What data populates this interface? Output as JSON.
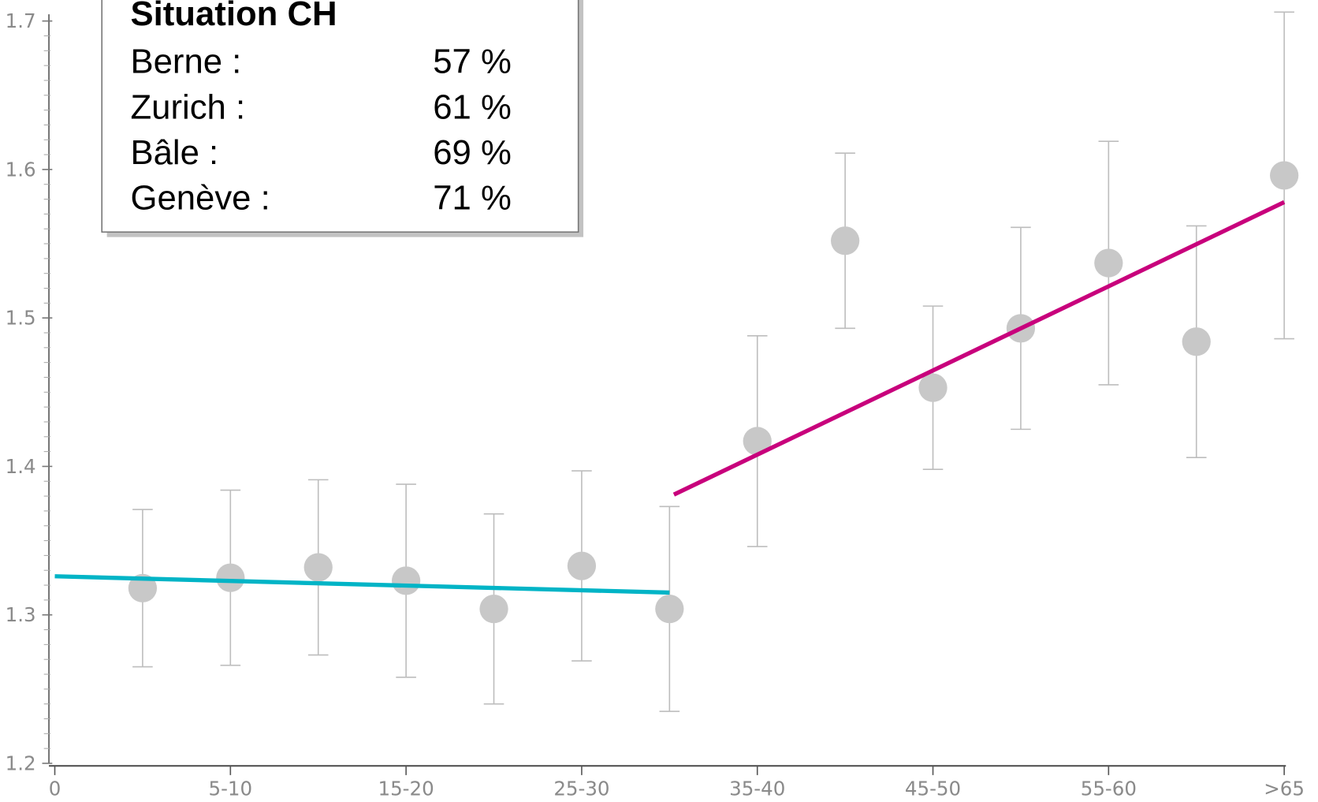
{
  "chart_data": {
    "type": "scatter",
    "x": [
      1,
      2,
      3,
      4,
      5,
      6,
      7,
      8,
      9,
      10,
      11,
      12,
      13,
      14
    ],
    "series": [
      {
        "color": "#c8c8c8",
        "values": [
          1.318,
          1.325,
          1.332,
          1.323,
          1.304,
          1.333,
          1.304,
          1.417,
          1.552,
          1.453,
          1.493,
          1.537,
          1.484,
          1.596
        ],
        "errors": [
          0.053,
          0.059,
          0.059,
          0.065,
          0.064,
          0.064,
          0.069,
          0.071,
          0.059,
          0.055,
          0.068,
          0.082,
          0.078,
          0.11
        ],
        "error_color": "#bdbdbd"
      }
    ],
    "trend_lines": [
      {
        "color": "#00b4c6",
        "x": [
          0,
          7
        ],
        "values": [
          1.326,
          1.315
        ]
      },
      {
        "color": "#c8007c",
        "x": [
          7.05,
          14
        ],
        "values": [
          1.381,
          1.578
        ]
      }
    ],
    "xlim": [
      0,
      14
    ],
    "xticks": [
      0,
      {
        "value": 2,
        "label": "5-10"
      },
      {
        "value": 4,
        "label": "15-20"
      },
      {
        "value": 6,
        "label": "25-30"
      },
      {
        "value": 8,
        "label": "35-40"
      },
      {
        "value": 10,
        "label": "45-50"
      },
      {
        "value": 12,
        "label": "55-60"
      },
      {
        "value": 14,
        "label": ">65"
      }
    ],
    "ylim": [
      1.2,
      1.7
    ],
    "yticks": [
      1.2,
      1.3,
      1.4,
      1.5,
      1.6,
      1.7
    ],
    "inset": {
      "title": "Situation CH",
      "rows": [
        [
          "Berne :",
          "57 %"
        ],
        [
          "Zurich :",
          "61 %"
        ],
        [
          "Bâle :",
          "69 %"
        ],
        [
          "Genève :",
          "71 %"
        ]
      ]
    }
  }
}
